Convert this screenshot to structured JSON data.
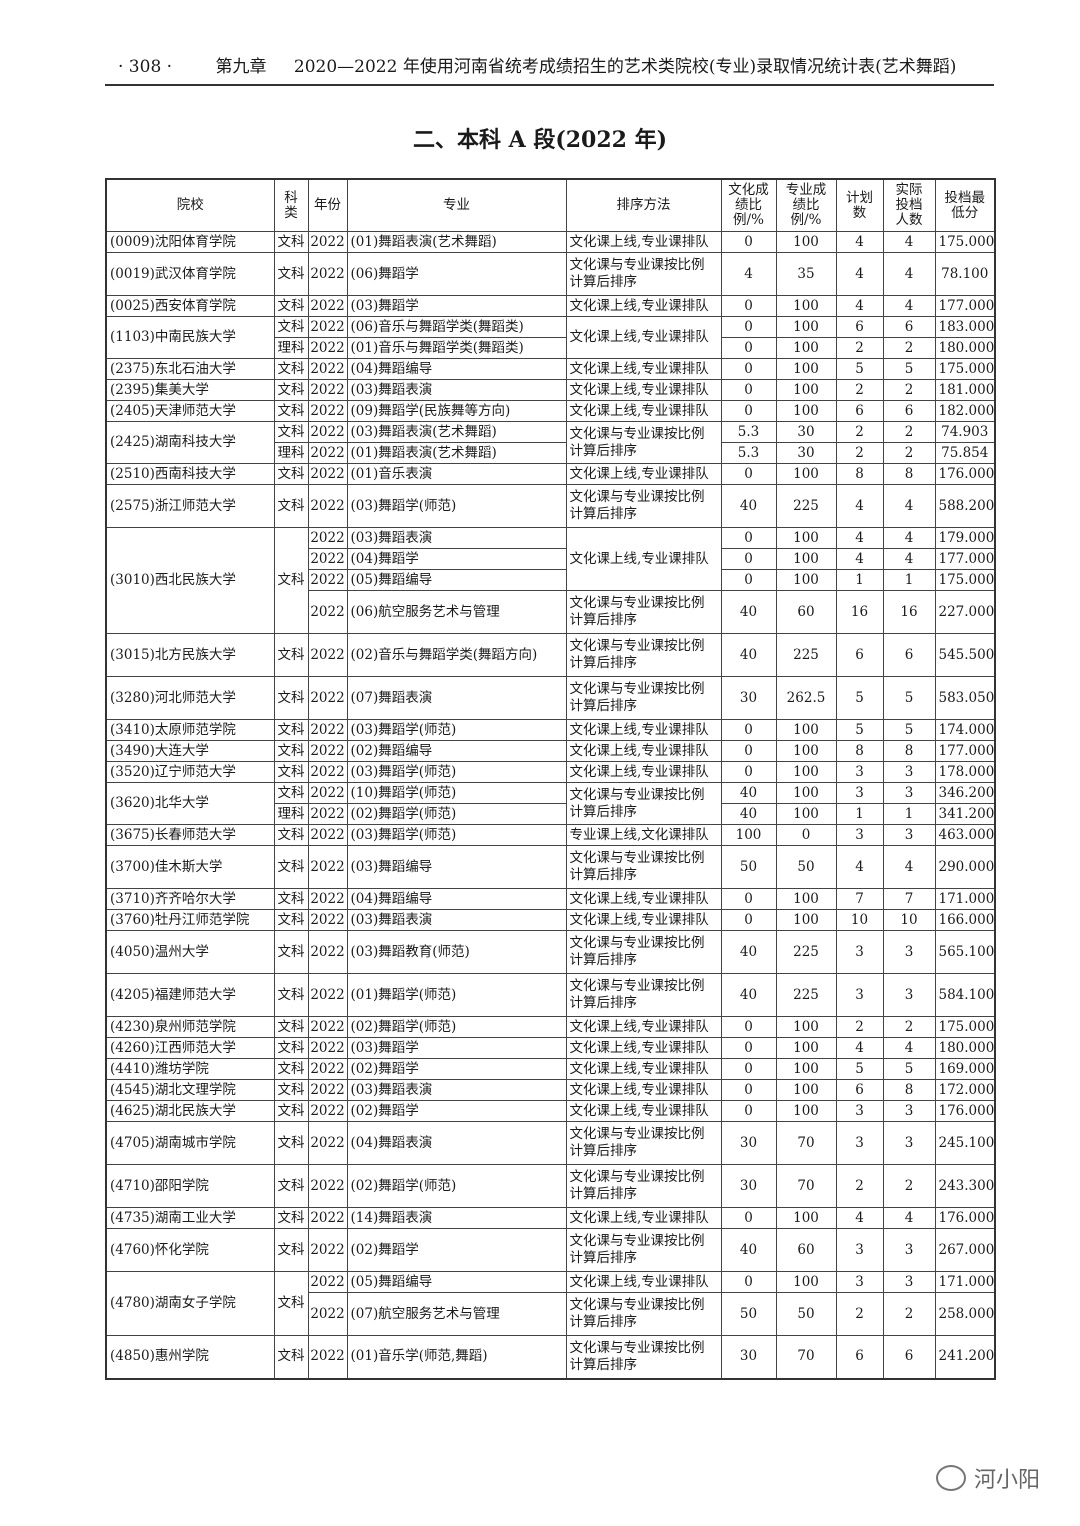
{
  "running_head": {
    "page_number": "· 308 ·",
    "chapter": "第九章",
    "title": "2020—2022 年使用河南省统考成绩招生的艺术类院校(专业)录取情况统计表(艺术舞蹈)"
  },
  "section_title": "二、本科 A 段(2022 年)",
  "table": {
    "headers": [
      "院校",
      "科类",
      "年份",
      "专业",
      "排序方法",
      "文化成绩比例/%",
      "专业成绩比例/%",
      "计划数",
      "实际投档人数",
      "投档最低分"
    ],
    "schools": [
      {
        "name": "(0009)沈阳体育学院",
        "rows": [
          [
            "文科",
            "2022",
            "(01)舞蹈表演(艺术舞蹈)",
            "文化课上线,专业课排队",
            "0",
            "100",
            "4",
            "4",
            "175.000"
          ]
        ]
      },
      {
        "name": "(0019)武汉体育学院",
        "rows": [
          [
            "文科",
            "2022",
            "(06)舞蹈学",
            "文化课与专业课按比例计算后排序",
            "4",
            "35",
            "4",
            "4",
            "78.100"
          ]
        ]
      },
      {
        "name": "(0025)西安体育学院",
        "rows": [
          [
            "文科",
            "2022",
            "(03)舞蹈学",
            "文化课上线,专业课排队",
            "0",
            "100",
            "4",
            "4",
            "177.000"
          ]
        ]
      },
      {
        "name": "(1103)中南民族大学",
        "rows": [
          [
            "文科",
            "2022",
            "(06)音乐与舞蹈学类(舞蹈类)",
            "文化课上线,专业课排队",
            "0",
            "100",
            "6",
            "6",
            "183.000"
          ],
          [
            "理科",
            "2022",
            "(01)音乐与舞蹈学类(舞蹈类)",
            "文化课上线,专业课排队",
            "0",
            "100",
            "2",
            "2",
            "180.000"
          ]
        ]
      },
      {
        "name": "(2375)东北石油大学",
        "rows": [
          [
            "文科",
            "2022",
            "(04)舞蹈编导",
            "文化课上线,专业课排队",
            "0",
            "100",
            "5",
            "5",
            "175.000"
          ]
        ]
      },
      {
        "name": "(2395)集美大学",
        "rows": [
          [
            "文科",
            "2022",
            "(03)舞蹈表演",
            "文化课上线,专业课排队",
            "0",
            "100",
            "2",
            "2",
            "181.000"
          ]
        ]
      },
      {
        "name": "(2405)天津师范大学",
        "rows": [
          [
            "文科",
            "2022",
            "(09)舞蹈学(民族舞等方向)",
            "文化课上线,专业课排队",
            "0",
            "100",
            "6",
            "6",
            "182.000"
          ]
        ]
      },
      {
        "name": "(2425)湖南科技大学",
        "rows": [
          [
            "文科",
            "2022",
            "(03)舞蹈表演(艺术舞蹈)",
            "文化课与专业课按比例计算后排序",
            "5.3",
            "30",
            "2",
            "2",
            "74.903"
          ],
          [
            "理科",
            "2022",
            "(01)舞蹈表演(艺术舞蹈)",
            "文化课与专业课按比例计算后排序",
            "5.3",
            "30",
            "2",
            "2",
            "75.854"
          ]
        ]
      },
      {
        "name": "(2510)西南科技大学",
        "rows": [
          [
            "文科",
            "2022",
            "(01)音乐表演",
            "文化课上线,专业课排队",
            "0",
            "100",
            "8",
            "8",
            "176.000"
          ]
        ]
      },
      {
        "name": "(2575)浙江师范大学",
        "rows": [
          [
            "文科",
            "2022",
            "(03)舞蹈学(师范)",
            "文化课与专业课按比例计算后排序",
            "40",
            "225",
            "4",
            "4",
            "588.200"
          ]
        ]
      },
      {
        "name": "(3010)西北民族大学",
        "rows": [
          [
            "文科",
            "2022",
            "(03)舞蹈表演",
            "文化课上线,专业课排队",
            "0",
            "100",
            "4",
            "4",
            "179.000"
          ],
          [
            "文科",
            "2022",
            "(04)舞蹈学",
            "文化课上线,专业课排队",
            "0",
            "100",
            "4",
            "4",
            "177.000"
          ],
          [
            "文科",
            "2022",
            "(05)舞蹈编导",
            "文化课上线,专业课排队",
            "0",
            "100",
            "1",
            "1",
            "175.000"
          ],
          [
            "文科",
            "2022",
            "(06)航空服务艺术与管理",
            "文化课与专业课按比例计算后排序",
            "40",
            "60",
            "16",
            "16",
            "227.000"
          ]
        ]
      },
      {
        "name": "(3015)北方民族大学",
        "rows": [
          [
            "文科",
            "2022",
            "(02)音乐与舞蹈学类(舞蹈方向)",
            "文化课与专业课按比例计算后排序",
            "40",
            "225",
            "6",
            "6",
            "545.500"
          ]
        ]
      },
      {
        "name": "(3280)河北师范大学",
        "rows": [
          [
            "文科",
            "2022",
            "(07)舞蹈表演",
            "文化课与专业课按比例计算后排序",
            "30",
            "262.5",
            "5",
            "5",
            "583.050"
          ]
        ]
      },
      {
        "name": "(3410)太原师范学院",
        "rows": [
          [
            "文科",
            "2022",
            "(03)舞蹈学(师范)",
            "文化课上线,专业课排队",
            "0",
            "100",
            "5",
            "5",
            "174.000"
          ]
        ]
      },
      {
        "name": "(3490)大连大学",
        "rows": [
          [
            "文科",
            "2022",
            "(02)舞蹈编导",
            "文化课上线,专业课排队",
            "0",
            "100",
            "8",
            "8",
            "177.000"
          ]
        ]
      },
      {
        "name": "(3520)辽宁师范大学",
        "rows": [
          [
            "文科",
            "2022",
            "(03)舞蹈学(师范)",
            "文化课上线,专业课排队",
            "0",
            "100",
            "3",
            "3",
            "178.000"
          ]
        ]
      },
      {
        "name": "(3620)北华大学",
        "rows": [
          [
            "文科",
            "2022",
            "(10)舞蹈学(师范)",
            "文化课与专业课按比例计算后排序",
            "40",
            "100",
            "3",
            "3",
            "346.200"
          ],
          [
            "理科",
            "2022",
            "(02)舞蹈学(师范)",
            "文化课与专业课按比例计算后排序",
            "40",
            "100",
            "1",
            "1",
            "341.200"
          ]
        ]
      },
      {
        "name": "(3675)长春师范大学",
        "rows": [
          [
            "文科",
            "2022",
            "(03)舞蹈学(师范)",
            "专业课上线,文化课排队",
            "100",
            "0",
            "3",
            "3",
            "463.000"
          ]
        ]
      },
      {
        "name": "(3700)佳木斯大学",
        "rows": [
          [
            "文科",
            "2022",
            "(03)舞蹈编导",
            "文化课与专业课按比例计算后排序",
            "50",
            "50",
            "4",
            "4",
            "290.000"
          ]
        ]
      },
      {
        "name": "(3710)齐齐哈尔大学",
        "rows": [
          [
            "文科",
            "2022",
            "(04)舞蹈编导",
            "文化课上线,专业课排队",
            "0",
            "100",
            "7",
            "7",
            "171.000"
          ]
        ]
      },
      {
        "name": "(3760)牡丹江师范学院",
        "rows": [
          [
            "文科",
            "2022",
            "(03)舞蹈表演",
            "文化课上线,专业课排队",
            "0",
            "100",
            "10",
            "10",
            "166.000"
          ]
        ]
      },
      {
        "name": "(4050)温州大学",
        "rows": [
          [
            "文科",
            "2022",
            "(03)舞蹈教育(师范)",
            "文化课与专业课按比例计算后排序",
            "40",
            "225",
            "3",
            "3",
            "565.100"
          ]
        ]
      },
      {
        "name": "(4205)福建师范大学",
        "rows": [
          [
            "文科",
            "2022",
            "(01)舞蹈学(师范)",
            "文化课与专业课按比例计算后排序",
            "40",
            "225",
            "3",
            "3",
            "584.100"
          ]
        ]
      },
      {
        "name": "(4230)泉州师范学院",
        "rows": [
          [
            "文科",
            "2022",
            "(02)舞蹈学(师范)",
            "文化课上线,专业课排队",
            "0",
            "100",
            "2",
            "2",
            "175.000"
          ]
        ]
      },
      {
        "name": "(4260)江西师范大学",
        "rows": [
          [
            "文科",
            "2022",
            "(03)舞蹈学",
            "文化课上线,专业课排队",
            "0",
            "100",
            "4",
            "4",
            "180.000"
          ]
        ]
      },
      {
        "name": "(4410)潍坊学院",
        "rows": [
          [
            "文科",
            "2022",
            "(02)舞蹈学",
            "文化课上线,专业课排队",
            "0",
            "100",
            "5",
            "5",
            "169.000"
          ]
        ]
      },
      {
        "name": "(4545)湖北文理学院",
        "rows": [
          [
            "文科",
            "2022",
            "(03)舞蹈表演",
            "文化课上线,专业课排队",
            "0",
            "100",
            "6",
            "8",
            "172.000"
          ]
        ]
      },
      {
        "name": "(4625)湖北民族大学",
        "rows": [
          [
            "文科",
            "2022",
            "(02)舞蹈学",
            "文化课上线,专业课排队",
            "0",
            "100",
            "3",
            "3",
            "176.000"
          ]
        ]
      },
      {
        "name": "(4705)湖南城市学院",
        "rows": [
          [
            "文科",
            "2022",
            "(04)舞蹈表演",
            "文化课与专业课按比例计算后排序",
            "30",
            "70",
            "3",
            "3",
            "245.100"
          ]
        ]
      },
      {
        "name": "(4710)邵阳学院",
        "rows": [
          [
            "文科",
            "2022",
            "(02)舞蹈学(师范)",
            "文化课与专业课按比例计算后排序",
            "30",
            "70",
            "2",
            "2",
            "243.300"
          ]
        ]
      },
      {
        "name": "(4735)湖南工业大学",
        "rows": [
          [
            "文科",
            "2022",
            "(14)舞蹈表演",
            "文化课上线,专业课排队",
            "0",
            "100",
            "4",
            "4",
            "176.000"
          ]
        ]
      },
      {
        "name": "(4760)怀化学院",
        "rows": [
          [
            "文科",
            "2022",
            "(02)舞蹈学",
            "文化课与专业课按比例计算后排序",
            "40",
            "60",
            "3",
            "3",
            "267.000"
          ]
        ]
      },
      {
        "name": "(4780)湖南女子学院",
        "rows": [
          [
            "文科",
            "2022",
            "(05)舞蹈编导",
            "文化课上线,专业课排队",
            "0",
            "100",
            "3",
            "3",
            "171.000"
          ],
          [
            "文科",
            "2022",
            "(07)航空服务艺术与管理",
            "文化课与专业课按比例计算后排序",
            "50",
            "50",
            "2",
            "2",
            "258.000"
          ]
        ]
      },
      {
        "name": "(4850)惠州学院",
        "rows": [
          [
            "文科",
            "2022",
            "(01)音乐学(师范,舞蹈)",
            "文化课与专业课按比例计算后排序",
            "30",
            "70",
            "6",
            "6",
            "241.200"
          ]
        ]
      }
    ]
  },
  "watermark": {
    "text": "河小阳",
    "icon": "wechat-icon"
  }
}
